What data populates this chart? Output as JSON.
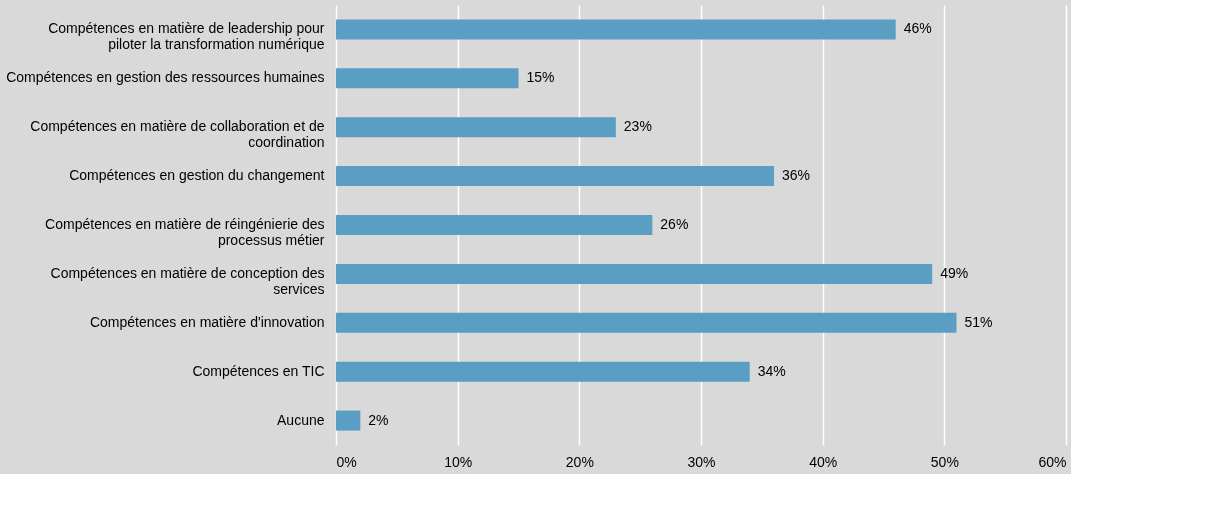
{
  "chart_data": {
    "type": "bar",
    "orientation": "horizontal",
    "categories": [
      "Compétences en matière de leadership pour piloter la transformation numérique",
      "Compétences en gestion des ressources humaines",
      "Compétences en matière de collaboration et de coordination",
      "Compétences en gestion du changement",
      "Compétences en matière de réingénierie des processus métier",
      "Compétences en matière de conception des services",
      "Compétences en matière d'innovation",
      "Compétences en TIC",
      "Aucune"
    ],
    "values": [
      46,
      15,
      23,
      36,
      26,
      49,
      51,
      34,
      2
    ],
    "value_labels": [
      "46%",
      "15%",
      "23%",
      "36%",
      "26%",
      "49%",
      "51%",
      "34%",
      "2%"
    ],
    "color": "#5a9ec3",
    "xlim": [
      0,
      60
    ],
    "xticks": [
      {
        "value": 0,
        "label": "0%"
      },
      {
        "value": 10,
        "label": "10%"
      },
      {
        "value": 20,
        "label": "20%"
      },
      {
        "value": 30,
        "label": "30%"
      },
      {
        "value": 40,
        "label": "40%"
      },
      {
        "value": 50,
        "label": "50%"
      },
      {
        "value": 60,
        "label": "60%"
      }
    ],
    "grid": "x"
  }
}
